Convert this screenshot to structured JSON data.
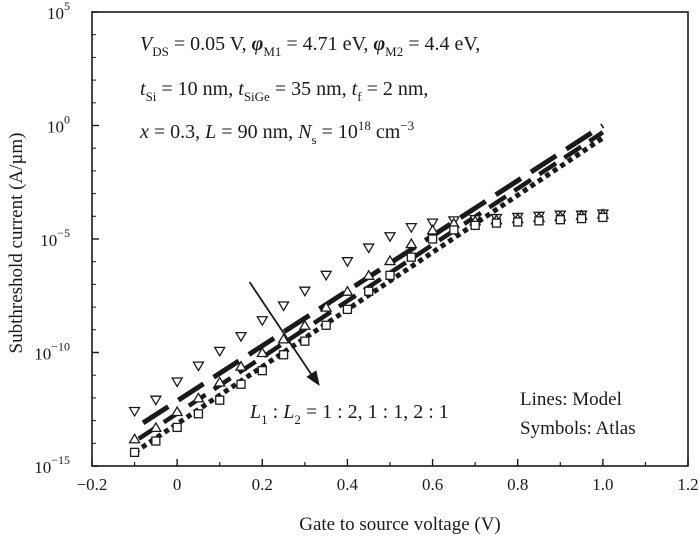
{
  "chart_data": {
    "type": "line",
    "xlabel": "Gate to source voltage (V)",
    "ylabel": "Subthreshold current (A/µm)",
    "xlim": [
      -0.2,
      1.2
    ],
    "ylim": [
      1e-15,
      100000.0
    ],
    "yscale": "log",
    "grid": false,
    "x_ticks": [
      "−0.2",
      "0",
      "0.2",
      "0.4",
      "0.6",
      "0.8",
      "1.0",
      "1.2"
    ],
    "y_ticks": [
      {
        "base": "10",
        "exp": "−15",
        "value": 1e-15
      },
      {
        "base": "10",
        "exp": "−10",
        "value": 1e-10
      },
      {
        "base": "10",
        "exp": "−5",
        "value": 1e-05
      },
      {
        "base": "10",
        "exp": "0",
        "value": 1
      },
      {
        "base": "10",
        "exp": "5",
        "value": 100000.0
      }
    ],
    "annotation_lines": [
      [
        {
          "t": "V",
          "i": true
        },
        {
          "t": "DS",
          "sub": true
        },
        {
          "t": " = 0.05 V,  "
        },
        {
          "t": "φ",
          "i": true,
          "b": true
        },
        {
          "t": "M1",
          "sub": true
        },
        {
          "t": " = 4.71 eV,  "
        },
        {
          "t": "φ",
          "i": true,
          "b": true
        },
        {
          "t": "M2",
          "sub": true
        },
        {
          "t": " = 4.4 eV,"
        }
      ],
      [
        {
          "t": "t",
          "i": true
        },
        {
          "t": "Si",
          "sub": true
        },
        {
          "t": " = 10 nm, "
        },
        {
          "t": "t",
          "i": true
        },
        {
          "t": "SiGe",
          "sub": true
        },
        {
          "t": " = 35 nm, "
        },
        {
          "t": "t",
          "i": true
        },
        {
          "t": "f",
          "sub": true
        },
        {
          "t": " = 2 nm,"
        }
      ],
      [
        {
          "t": "x",
          "i": true
        },
        {
          "t": " = 0.3, "
        },
        {
          "t": "L",
          "i": true
        },
        {
          "t": " = 90 nm, "
        },
        {
          "t": "N",
          "i": true
        },
        {
          "t": "s",
          "sub": true
        },
        {
          "t": " = 10"
        },
        {
          "t": "18",
          "sup": true
        },
        {
          "t": " cm"
        },
        {
          "t": "−3",
          "sup": true
        }
      ]
    ],
    "arrow_label": [
      {
        "t": "L",
        "i": true
      },
      {
        "t": "1",
        "sub": true
      },
      {
        "t": " : "
      },
      {
        "t": "L",
        "i": true
      },
      {
        "t": "2",
        "sub": true
      },
      {
        "t": " = 1 : 2, 1 : 1, 2 : 1"
      }
    ],
    "legend": [
      "Lines: Model",
      "Symbols: Atlas"
    ],
    "series": [
      {
        "label": "1 : 2",
        "line_style": "long-dash",
        "marker": "triangle-down",
        "model": [
          [
            -0.08,
            -13.1
          ],
          [
            1.0,
            0.0
          ]
        ],
        "atlas": [
          [
            -0.1,
            -12.6
          ],
          [
            -0.05,
            -12.1
          ],
          [
            0.0,
            -11.3
          ],
          [
            0.05,
            -10.6
          ],
          [
            0.1,
            -9.95
          ],
          [
            0.15,
            -9.3
          ],
          [
            0.2,
            -8.6
          ],
          [
            0.25,
            -7.95
          ],
          [
            0.3,
            -7.3
          ],
          [
            0.35,
            -6.6
          ],
          [
            0.4,
            -6.0
          ],
          [
            0.45,
            -5.4
          ],
          [
            0.5,
            -4.9
          ],
          [
            0.55,
            -4.5
          ],
          [
            0.6,
            -4.3
          ],
          [
            0.65,
            -4.2
          ],
          [
            0.7,
            -4.15
          ],
          [
            0.75,
            -4.1
          ],
          [
            0.8,
            -4.05
          ],
          [
            0.85,
            -4.0
          ],
          [
            0.9,
            -3.95
          ],
          [
            0.95,
            -3.95
          ],
          [
            1.0,
            -3.9
          ]
        ]
      },
      {
        "label": "1 : 1",
        "line_style": "medium-dash",
        "marker": "triangle-up",
        "model": [
          [
            -0.09,
            -13.8
          ],
          [
            1.0,
            -0.3
          ]
        ],
        "atlas": [
          [
            -0.1,
            -13.8
          ],
          [
            -0.05,
            -13.3
          ],
          [
            0.0,
            -12.6
          ],
          [
            0.05,
            -12.0
          ],
          [
            0.1,
            -11.3
          ],
          [
            0.15,
            -10.6
          ],
          [
            0.2,
            -10.0
          ],
          [
            0.25,
            -9.4
          ],
          [
            0.3,
            -8.8
          ],
          [
            0.35,
            -8.0
          ],
          [
            0.4,
            -7.3
          ],
          [
            0.45,
            -6.6
          ],
          [
            0.5,
            -5.95
          ],
          [
            0.55,
            -5.2
          ],
          [
            0.6,
            -4.6
          ],
          [
            0.65,
            -4.3
          ],
          [
            0.7,
            -4.2
          ],
          [
            0.75,
            -4.15
          ],
          [
            0.8,
            -4.1
          ],
          [
            0.85,
            -4.05
          ],
          [
            0.9,
            -4.0
          ],
          [
            0.95,
            -3.95
          ],
          [
            1.0,
            -3.9
          ]
        ]
      },
      {
        "label": "2 : 1",
        "line_style": "dotted",
        "marker": "square",
        "model": [
          [
            -0.1,
            -14.4
          ],
          [
            1.0,
            -0.55
          ]
        ],
        "atlas": [
          [
            -0.1,
            -14.4
          ],
          [
            -0.05,
            -13.9
          ],
          [
            0.0,
            -13.3
          ],
          [
            0.05,
            -12.7
          ],
          [
            0.1,
            -12.1
          ],
          [
            0.15,
            -11.4
          ],
          [
            0.2,
            -10.8
          ],
          [
            0.25,
            -10.1
          ],
          [
            0.3,
            -9.5
          ],
          [
            0.35,
            -8.8
          ],
          [
            0.4,
            -8.1
          ],
          [
            0.45,
            -7.3
          ],
          [
            0.5,
            -6.6
          ],
          [
            0.55,
            -5.8
          ],
          [
            0.6,
            -5.0
          ],
          [
            0.65,
            -4.6
          ],
          [
            0.7,
            -4.4
          ],
          [
            0.75,
            -4.3
          ],
          [
            0.8,
            -4.25
          ],
          [
            0.85,
            -4.2
          ],
          [
            0.9,
            -4.15
          ],
          [
            0.95,
            -4.1
          ],
          [
            1.0,
            -4.05
          ]
        ]
      }
    ]
  }
}
